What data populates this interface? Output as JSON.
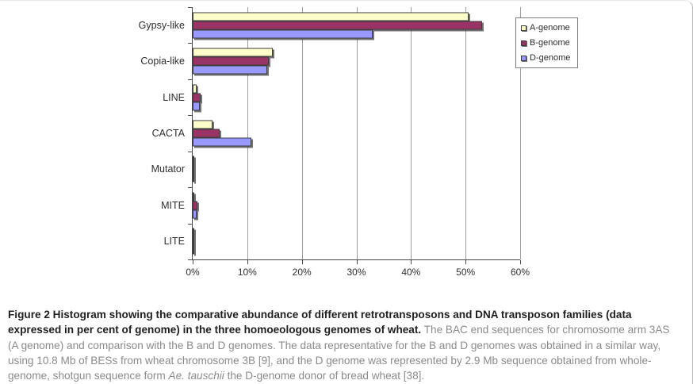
{
  "chart_data": {
    "type": "bar",
    "orientation": "horizontal",
    "title": "",
    "xlabel": "",
    "ylabel": "",
    "categories": [
      "Gypsy-like",
      "Copia-like",
      "LINE",
      "CACTA",
      "Mutator",
      "MITE",
      "LITE"
    ],
    "series": [
      {
        "name": "A-genome",
        "color": "#FFFFCC",
        "values": [
          50.5,
          14.7,
          0.7,
          3.6,
          0.3,
          0.3,
          0.1
        ]
      },
      {
        "name": "B-genome",
        "color": "#993366",
        "values": [
          53.0,
          14.0,
          1.5,
          5.0,
          0.1,
          0.8,
          0.1
        ]
      },
      {
        "name": "D-genome",
        "color": "#9999FF",
        "values": [
          33.0,
          13.7,
          1.3,
          10.8,
          0.1,
          0.7,
          0.3
        ]
      }
    ],
    "xlim": [
      0,
      60
    ],
    "x_tick_values": [
      0,
      10,
      20,
      30,
      40,
      50,
      60
    ],
    "x_tick_labels": [
      "0%",
      "10%",
      "20%",
      "30%",
      "40%",
      "50%",
      "60%"
    ],
    "grid": "vertical",
    "legend_position": "top-right",
    "colors": {
      "gridline": "#9e9e9e",
      "axis": "#464646",
      "bar_border": "#3d3d3d",
      "bar_shadow": "#464646"
    }
  },
  "caption": {
    "bold": "Figure 2 Histogram showing the comparative abundance of different retrotransposons and DNA transposon families (data expressed in per cent of genome) in the three homoeologous genomes of wheat.",
    "regular_1": " The BAC end sequences for chromosome arm 3AS (A genome) and comparison with the B and D genomes. The data representative for the B and D genomes was obtained in a similar way, using 10.8 Mb of BESs from wheat chromosome 3B [9], and the D genome was represented by 2.9 Mb sequence obtained from whole-genome, shotgun sequence form ",
    "italic": "Ae. tauschii",
    "regular_2": " the D-genome donor of bread wheat [38]."
  }
}
